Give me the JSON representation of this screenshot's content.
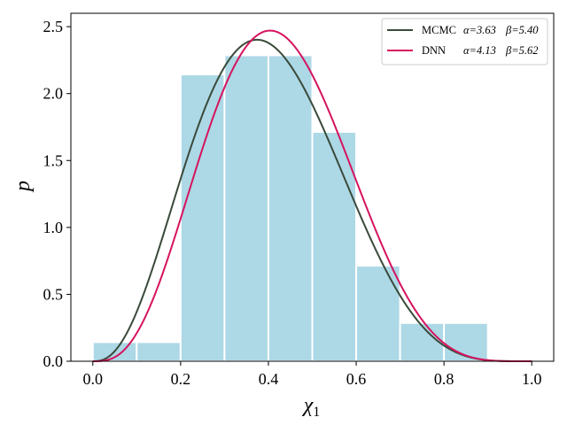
{
  "chart_data": {
    "type": "bar+line",
    "title": "",
    "xlabel": "χ",
    "xlabel_subscript": "1",
    "ylabel": "p",
    "xlim": [
      -0.05,
      1.05
    ],
    "ylim": [
      0,
      2.6
    ],
    "xticks": [
      0.0,
      0.2,
      0.4,
      0.6,
      0.8,
      1.0
    ],
    "xtick_labels": [
      "0.0",
      "0.2",
      "0.4",
      "0.6",
      "0.8",
      "1.0"
    ],
    "yticks": [
      0.0,
      0.5,
      1.0,
      1.5,
      2.0,
      2.5
    ],
    "ytick_labels": [
      "0.0",
      "0.5",
      "1.0",
      "1.5",
      "2.0",
      "2.5"
    ],
    "histogram": {
      "bin_edges": [
        0.0,
        0.1,
        0.2,
        0.3,
        0.4,
        0.5,
        0.6,
        0.7,
        0.8,
        0.9
      ],
      "values": [
        0.143,
        0.143,
        2.143,
        2.286,
        2.286,
        1.714,
        0.714,
        0.286,
        0.286
      ],
      "color": "#add8e6"
    },
    "series": [
      {
        "name": "MCMC",
        "alpha_label": "α=3.63",
        "beta_label": "β=5.40",
        "alpha": 3.63,
        "beta": 5.4,
        "color": "#3a4a3a"
      },
      {
        "name": "DNN",
        "alpha_label": "α=4.13",
        "beta_label": "β=5.62",
        "alpha": 4.13,
        "beta": 5.62,
        "color": "#d6135e"
      }
    ],
    "legend_position": "upper-right"
  }
}
